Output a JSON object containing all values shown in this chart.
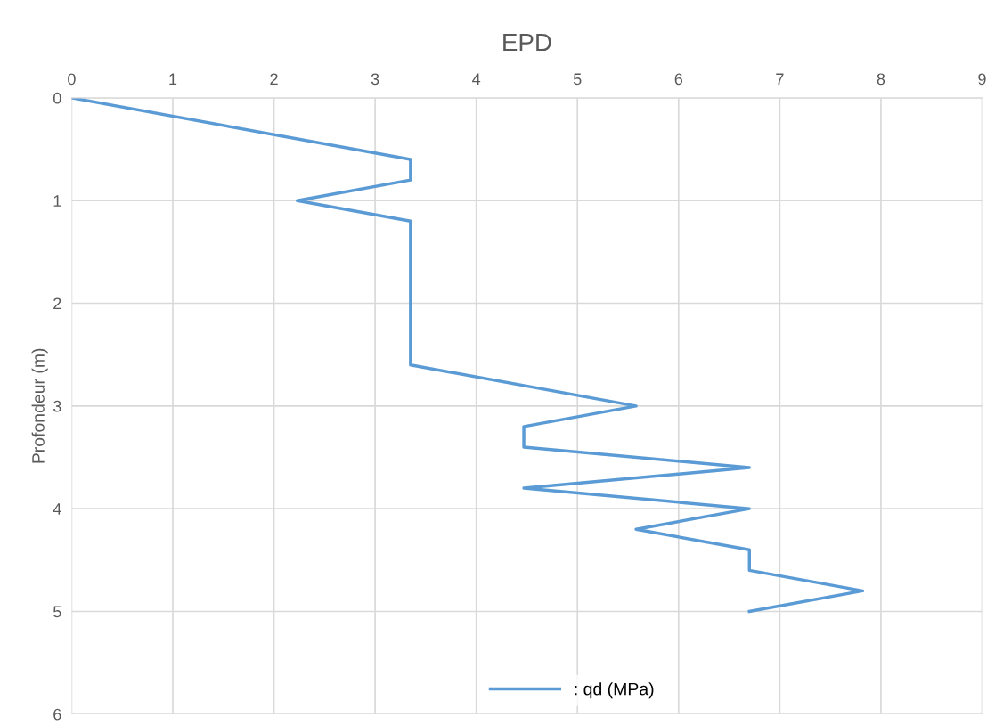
{
  "chart_data": {
    "type": "line",
    "title": "EPD",
    "ylabel": "Profondeur (m)",
    "x": [
      0,
      3.35,
      3.35,
      2.23,
      3.35,
      3.35,
      5.58,
      4.47,
      4.47,
      6.7,
      4.47,
      6.7,
      5.58,
      6.7,
      6.7,
      7.82,
      6.7
    ],
    "series": [
      {
        "name": ": qd (MPa)",
        "color": "#5b9bd5",
        "values": [
          0,
          0.6,
          0.8,
          1.0,
          1.2,
          2.6,
          3.0,
          3.2,
          3.4,
          3.6,
          3.8,
          4.0,
          4.2,
          4.4,
          4.6,
          4.8,
          5.0
        ]
      }
    ],
    "xlim": [
      0,
      9
    ],
    "xticks": [
      0,
      1,
      2,
      3,
      4,
      5,
      6,
      7,
      8,
      9
    ],
    "ylim": [
      6,
      0
    ],
    "yticks": [
      0,
      1,
      2,
      3,
      4,
      5,
      6
    ],
    "grid": true,
    "legend": "bottom",
    "line_style": "solid",
    "marker": "none"
  }
}
